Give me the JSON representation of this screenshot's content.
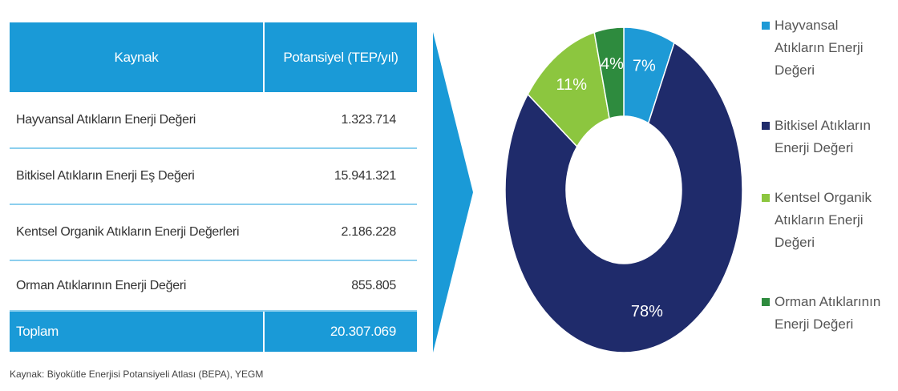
{
  "table": {
    "header": [
      "Kaynak",
      "Potansiyel (TEP/yıl)"
    ],
    "rows": [
      [
        "Hayvansal Atıkların Enerji Değeri",
        "1.323.714"
      ],
      [
        "Bitkisel Atıkların Enerji Eş Değeri",
        "15.941.321"
      ],
      [
        "Kentsel Organik Atıkların Enerji Değerleri",
        "2.186.228"
      ],
      [
        "Orman Atıklarının Enerji Değeri",
        "855.805"
      ]
    ],
    "total": [
      "Toplam",
      "20.307.069"
    ]
  },
  "source": "Kaynak: Biyokütle Enerjisi Potansiyeli Atlası (BEPA), YEGM",
  "chart_data": {
    "type": "donut",
    "categories": [
      "Hayvansal Atıkların Enerji Değeri",
      "Bitkisel Atıkların Enerji Değeri",
      "Kentsel Organik Atıkların Enerji Değeri",
      "Orman Atıklarının Enerji Değeri"
    ],
    "values": [
      7,
      78,
      11,
      4
    ],
    "value_labels": [
      "7%",
      "78%",
      "11%",
      "4%"
    ],
    "colors": [
      "#1e9ad6",
      "#1f2b6b",
      "#8cc63f",
      "#2e8b3e"
    ]
  }
}
